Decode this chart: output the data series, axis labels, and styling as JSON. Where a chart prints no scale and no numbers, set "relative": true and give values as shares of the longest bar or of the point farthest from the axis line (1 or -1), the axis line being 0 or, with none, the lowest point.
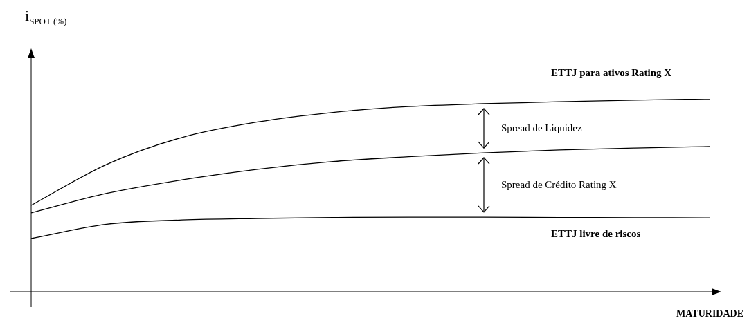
{
  "chart_data": {
    "type": "line",
    "ylabel": "i$_{SPOT (%)}$",
    "xlabel": "MATURIDADE",
    "relative": true,
    "categories": [
      null,
      null,
      null,
      null,
      null,
      null,
      null,
      null,
      null,
      null
    ],
    "series": [
      {
        "name": "ETTJ para ativos Rating X",
        "color": "#000000",
        "values": [
          0.448,
          0.66,
          0.8,
          0.88,
          0.93,
          0.96,
          0.975,
          0.985,
          0.993,
          1.0
        ]
      },
      {
        "color": "#000000",
        "values": [
          0.409,
          0.51,
          0.58,
          0.635,
          0.675,
          0.7,
          0.72,
          0.735,
          0.745,
          0.753
        ]
      },
      {
        "name": "ETTJ livre de riscos",
        "color": "#000000",
        "values": [
          0.276,
          0.35,
          0.372,
          0.38,
          0.385,
          0.387,
          0.387,
          0.385,
          0.384,
          0.383
        ]
      }
    ],
    "annotations": [
      "Spread de Liquidez",
      "Spread de Crédito Rating X"
    ],
    "grid": false,
    "legend": false,
    "marker": "none",
    "line_style": "solid"
  }
}
